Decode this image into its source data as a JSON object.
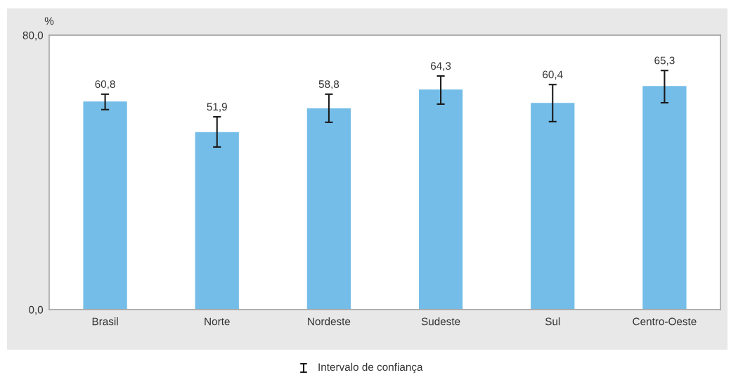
{
  "chart_data": {
    "type": "bar",
    "ylabel": "%",
    "categories": [
      "Brasil",
      "Norte",
      "Nordeste",
      "Sudeste",
      "Sul",
      "Centro-Oeste"
    ],
    "values": [
      60.8,
      51.9,
      58.8,
      64.3,
      60.4,
      65.3
    ],
    "errors": [
      [
        58.3,
        62.8
      ],
      [
        47.4,
        56.2
      ],
      [
        54.6,
        62.8
      ],
      [
        59.9,
        68.1
      ],
      [
        54.8,
        65.6
      ],
      [
        60.3,
        69.7
      ]
    ],
    "color": "#74bde8",
    "ylim": [
      0,
      80
    ],
    "yticks": [
      {
        "value": 0,
        "label": "0,0"
      },
      {
        "value": 80,
        "label": "80,0"
      }
    ],
    "value_labels": [
      "60,8",
      "51,9",
      "58,8",
      "64,3",
      "60,4",
      "65,3"
    ],
    "grid": false,
    "legend": false,
    "annotations": [
      "Intervalo de confiança"
    ]
  }
}
